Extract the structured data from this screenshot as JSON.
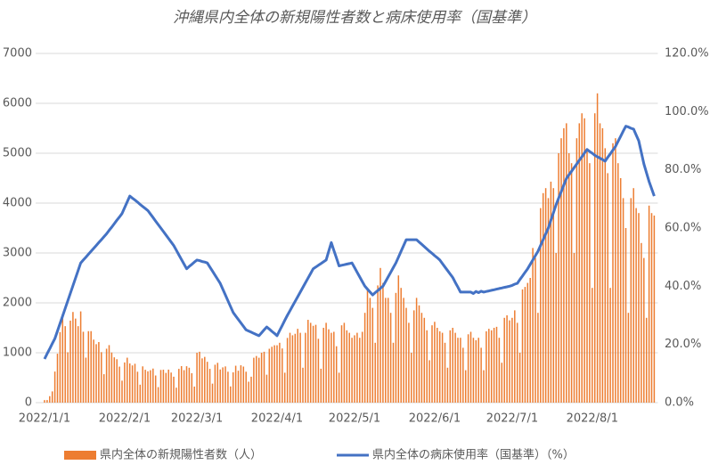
{
  "chart_data": {
    "type": "bar",
    "title": "沖縄県内全体の新規陽性者数と病床使用率（国基準）",
    "categories": [
      "2022/1/1",
      null,
      null,
      null,
      null,
      null,
      null,
      null,
      null,
      null,
      null,
      null,
      null,
      null,
      null,
      null,
      null,
      null,
      null,
      null,
      null,
      null,
      null,
      null,
      null,
      null,
      null,
      null,
      null,
      null,
      null,
      "2022/2/1",
      null,
      null,
      null,
      null,
      null,
      null,
      null,
      null,
      null,
      null,
      null,
      null,
      null,
      null,
      null,
      null,
      null,
      null,
      null,
      null,
      null,
      null,
      null,
      null,
      null,
      null,
      null,
      "2022/3/1",
      null,
      null,
      null,
      null,
      null,
      null,
      null,
      null,
      null,
      null,
      null,
      null,
      null,
      null,
      null,
      null,
      null,
      null,
      null,
      null,
      null,
      null,
      null,
      null,
      null,
      null,
      null,
      null,
      null,
      null,
      "2022/4/1",
      null,
      null,
      null,
      null,
      null,
      null,
      null,
      null,
      null,
      null,
      null,
      null,
      null,
      null,
      null,
      null,
      null,
      null,
      null,
      null,
      null,
      null,
      null,
      null,
      null,
      null,
      null,
      null,
      null,
      "2022/5/1",
      null,
      null,
      null,
      null,
      null,
      null,
      null,
      null,
      null,
      null,
      null,
      null,
      null,
      null,
      null,
      null,
      null,
      null,
      null,
      null,
      null,
      null,
      null,
      null,
      null,
      null,
      null,
      null,
      null,
      null,
      "2022/6/1",
      null,
      null,
      null,
      null,
      null,
      null,
      null,
      null,
      null,
      null,
      null,
      null,
      null,
      null,
      null,
      null,
      null,
      null,
      null,
      null,
      null,
      null,
      null,
      null,
      null,
      null,
      null,
      null,
      null,
      "2022/7/1",
      null,
      null,
      null,
      null,
      null,
      null,
      null,
      null,
      null,
      null,
      null,
      null,
      null,
      null,
      null,
      null,
      null,
      null,
      null,
      null,
      null,
      null,
      null,
      null,
      null,
      null,
      null,
      null,
      null,
      null,
      "2022/8/1",
      null,
      null,
      null,
      null,
      null,
      null,
      null,
      null,
      null,
      null,
      null,
      null,
      null,
      null,
      null,
      null,
      null,
      null,
      null,
      null,
      null,
      null,
      null,
      null
    ],
    "series": [
      {
        "name": "県内全体の新規陽性者数（人）",
        "type": "bar",
        "color": "#ed7d31",
        "values": [
          51,
          52,
          130,
          225,
          623,
          981,
          1414,
          1759,
          1533,
          1010,
          1644,
          1817,
          1685,
          1533,
          1829,
          1421,
          902,
          1433,
          1433,
          1263,
          1172,
          1214,
          1012,
          570,
          1081,
          1153,
          1005,
          908,
          870,
          722,
          441,
          806,
          901,
          786,
          746,
          779,
          620,
          360,
          727,
          659,
          628,
          650,
          683,
          544,
          311,
          655,
          660,
          596,
          662,
          603,
          520,
          300,
          677,
          732,
          651,
          730,
          700,
          590,
          322,
          1000,
          1020,
          887,
          917,
          819,
          677,
          381,
          760,
          798,
          665,
          707,
          726,
          620,
          325,
          607,
          740,
          640,
          749,
          723,
          620,
          420,
          520,
          900,
          935,
          900,
          1000,
          1020,
          560,
          1080,
          1120,
          1150,
          1150,
          1200,
          1086,
          600,
          1297,
          1400,
          1350,
          1380,
          1480,
          1400,
          700,
          1400,
          1660,
          1600,
          1540,
          1560,
          1280,
          680,
          1500,
          1600,
          1470,
          1400,
          1420,
          1130,
          600,
          1550,
          1600,
          1450,
          1400,
          1300,
          1350,
          1400,
          1300,
          1420,
          1800,
          2300,
          2100,
          1900,
          1200,
          2350,
          2700,
          2400,
          2100,
          2100,
          1800,
          1200,
          2200,
          2550,
          2300,
          2100,
          1900,
          1600,
          1000,
          1850,
          2100,
          1950,
          1800,
          1700,
          1450,
          850,
          1550,
          1620,
          1500,
          1430,
          1400,
          1200,
          700,
          1450,
          1500,
          1400,
          1300,
          1300,
          1100,
          650,
          1370,
          1420,
          1300,
          1250,
          1300,
          1100,
          650,
          1430,
          1480,
          1450,
          1500,
          1520,
          1300,
          800,
          1700,
          1750,
          1650,
          1700,
          1850,
          1600,
          1000,
          2270,
          2320,
          2400,
          2500,
          3100,
          2900,
          1800,
          3900,
          4200,
          4300,
          4100,
          4430,
          4300,
          3000,
          5000,
          5300,
          5500,
          5600,
          5000,
          4800,
          3000,
          5300,
          5600,
          5800,
          5700,
          5100,
          4800,
          2300,
          5800,
          6200,
          5600,
          5500,
          5100,
          4600,
          2300,
          5200,
          5300,
          4800,
          4500,
          4100,
          3500,
          1800,
          4100,
          4300,
          3900,
          3800,
          3200,
          2900,
          1700,
          3950,
          3800,
          3750
        ]
      },
      {
        "name": "県内全体の病床使用率（国基準）（%）",
        "type": "line",
        "axis": "y2",
        "color": "#4472c4",
        "values": [
          15,
          16.8,
          18.5,
          20.3,
          22,
          24.6,
          27.2,
          29.8,
          32.4,
          35,
          37.6,
          40.2,
          42.8,
          45.4,
          48,
          49,
          50,
          51,
          52,
          53,
          54,
          55,
          56,
          57,
          58,
          59.2,
          60.3,
          61.5,
          62.7,
          63.8,
          65,
          67,
          69,
          71,
          70.3,
          69.6,
          68.9,
          68.1,
          67.4,
          66.7,
          66,
          64.8,
          63.6,
          62.4,
          61.2,
          60,
          58.8,
          57.6,
          56.4,
          55.2,
          54,
          52.4,
          50.8,
          49.2,
          47.6,
          46,
          46.8,
          47.5,
          48.3,
          49,
          48.8,
          48.5,
          48.3,
          48,
          46.6,
          45.2,
          43.8,
          42.4,
          41,
          39,
          37,
          35,
          33,
          31,
          29.8,
          28.6,
          27.4,
          26.2,
          25,
          24.6,
          24.2,
          23.8,
          23.4,
          23,
          24,
          25,
          26,
          25.3,
          24.5,
          23.8,
          23,
          24.8,
          26.5,
          28.3,
          30,
          31.6,
          33.2,
          34.8,
          36.4,
          38,
          39.6,
          41.2,
          42.8,
          44.4,
          46,
          46.6,
          47.2,
          47.8,
          48.4,
          49,
          52,
          55,
          52.3,
          49.7,
          47,
          47.2,
          47.4,
          47.6,
          47.8,
          48,
          46.4,
          44.8,
          43.2,
          41.6,
          40,
          39,
          38,
          37,
          37.8,
          38.5,
          39.3,
          40,
          41.6,
          43.2,
          44.8,
          46.4,
          48,
          50,
          52,
          54,
          56,
          56,
          56,
          56,
          56,
          55.2,
          54.4,
          53.6,
          52.8,
          52,
          51.3,
          50.5,
          49.8,
          49,
          47.8,
          46.6,
          45.4,
          44.2,
          43,
          41.3,
          39.7,
          38,
          38,
          38,
          38,
          38,
          37.5,
          38.2,
          37.8,
          38.3,
          38,
          38.2,
          38.4,
          38.6,
          38.8,
          39,
          39.2,
          39.4,
          39.6,
          39.8,
          40,
          40.3,
          40.7,
          41,
          42.3,
          43.5,
          44.8,
          46,
          47.5,
          49,
          50.5,
          52,
          54,
          56,
          58,
          60,
          62.7,
          65.3,
          68,
          70.3,
          72.5,
          74.8,
          77,
          78.3,
          79.5,
          80.8,
          82,
          83.3,
          84.5,
          85.8,
          87,
          86.3,
          85.7,
          85,
          84.5,
          84,
          83.5,
          83,
          84.3,
          85.5,
          86.8,
          88,
          89.8,
          91.5,
          93.3,
          95,
          94.7,
          94.3,
          94,
          92,
          90,
          86,
          82,
          79,
          76,
          73.5,
          71
        ]
      }
    ],
    "ylim": [
      0,
      7000
    ],
    "yticks": [
      0,
      1000,
      2000,
      3000,
      4000,
      5000,
      6000,
      7000
    ],
    "y2lim": [
      0,
      120
    ],
    "y2ticks": [
      {
        "value": 0,
        "label": "0.0%"
      },
      {
        "value": 20,
        "label": "20.0%"
      },
      {
        "value": 40,
        "label": "40.0%"
      },
      {
        "value": 60,
        "label": "60.0%"
      },
      {
        "value": 80,
        "label": "80.0%"
      },
      {
        "value": 100,
        "label": "100.0%"
      },
      {
        "value": 120,
        "label": "120.0%"
      }
    ],
    "grid": true
  }
}
